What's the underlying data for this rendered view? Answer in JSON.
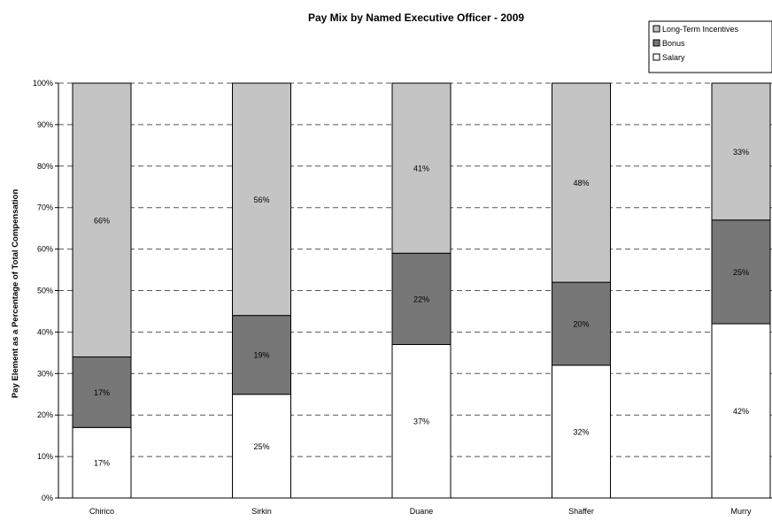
{
  "chart_data": {
    "type": "bar",
    "stacked": true,
    "title": "Pay Mix by Named Executive Officer - 2009",
    "xlabel": "",
    "ylabel": "Pay Element as a Percentage of Total Compensation",
    "ylim": [
      0,
      100
    ],
    "yticks": [
      "0%",
      "10%",
      "20%",
      "30%",
      "40%",
      "50%",
      "60%",
      "70%",
      "80%",
      "90%",
      "100%"
    ],
    "grid": "horizontal dashed",
    "legend_position": "top-right",
    "categories": [
      "Chirico",
      "Sirkin",
      "Duane",
      "Shaffer",
      "Murry"
    ],
    "series": [
      {
        "name": "Salary",
        "color": "#ffffff",
        "values": [
          17,
          25,
          37,
          32,
          42
        ],
        "labels": [
          "17%",
          "25%",
          "37%",
          "32%",
          "42%"
        ]
      },
      {
        "name": "Bonus",
        "color": "#777777",
        "values": [
          17,
          19,
          22,
          20,
          25
        ],
        "labels": [
          "17%",
          "19%",
          "22%",
          "20%",
          "25%"
        ]
      },
      {
        "name": "Long-Term Incentives",
        "color": "#c4c4c4",
        "values": [
          66,
          56,
          41,
          48,
          33
        ],
        "labels": [
          "66%",
          "56%",
          "41%",
          "48%",
          "33%"
        ]
      }
    ],
    "legend": [
      "Long-Term Incentives",
      "Bonus",
      "Salary"
    ]
  }
}
